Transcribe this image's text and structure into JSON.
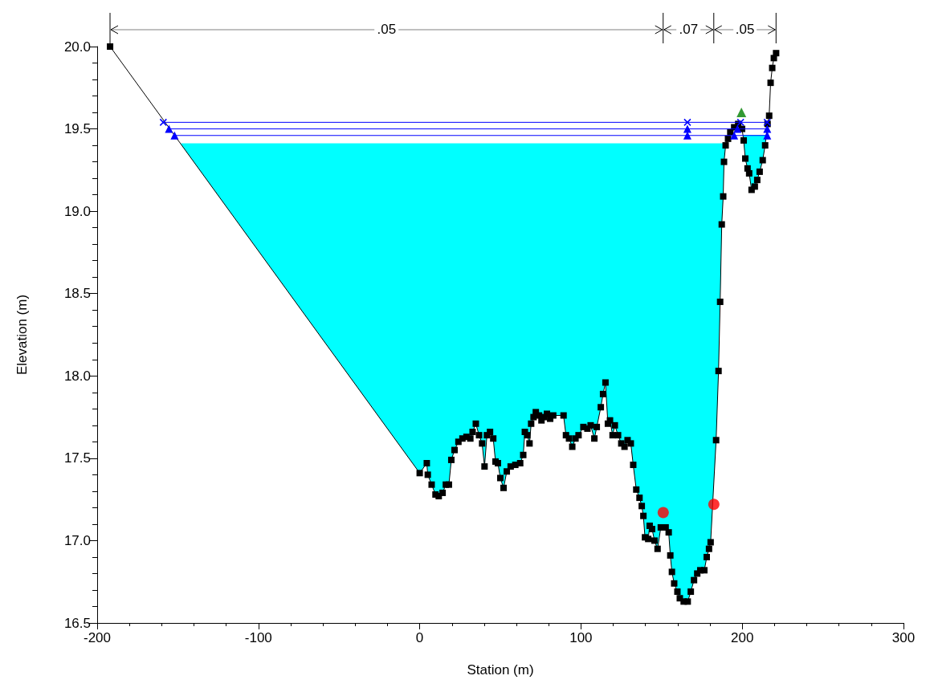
{
  "chart_data": {
    "type": "area",
    "xlabel": "Station (m)",
    "ylabel": "Elevation (m)",
    "xlim": [
      -200,
      300
    ],
    "xticks": [
      -200,
      -100,
      0,
      100,
      200,
      300
    ],
    "ylim": [
      16.5,
      20.0
    ],
    "yticks": [
      16.5,
      {
        "value": 17,
        "label": "17.0"
      },
      17.5,
      {
        "value": 18,
        "label": "18.0"
      },
      18.5,
      {
        "value": 19,
        "label": "19.0"
      },
      19.5,
      {
        "value": 20,
        "label": "20.0"
      }
    ],
    "grid": false,
    "annotations": [
      ".05",
      ".07",
      ".05"
    ],
    "series": [
      {
        "color": "#000000",
        "marker": "square",
        "x": [
          -192,
          0,
          4.4,
          5,
          7.4,
          9.8,
          11.8,
          14.2,
          16.2,
          18.1,
          19.6,
          21.6,
          24,
          26.5,
          29,
          31.4,
          32.8,
          34.8,
          36.8,
          38.7,
          40.2,
          41.7,
          43.6,
          45.6,
          47,
          48.5,
          50,
          52,
          54,
          56.4,
          59.3,
          62.3,
          64.2,
          65.2,
          66.7,
          68.1,
          69.1,
          70.6,
          72,
          74,
          75.5,
          77,
          78.9,
          80.9,
          82.8,
          89.2,
          90.7,
          92.6,
          94.6,
          96.6,
          98.5,
          101.5,
          104,
          106,
          108.3,
          109.8,
          112.3,
          113.7,
          115.2,
          116.7,
          118,
          119.6,
          121,
          123,
          125,
          127,
          128.9,
          130.9,
          132.4,
          134.3,
          136.3,
          137.7,
          138.7,
          139.7,
          141.7,
          142.6,
          144.1,
          145.6,
          147.5,
          149.5,
          152.5,
          154.4,
          155.4,
          156.4,
          157.8,
          159.8,
          161.3,
          163.7,
          166.2,
          168.1,
          170.1,
          172.1,
          174,
          176.5,
          178,
          179.4,
          180.4,
          183.8,
          185.3,
          186.3,
          187.3,
          188.2,
          188.7,
          189.7,
          191.2,
          192.6,
          195,
          197.5,
          199.9,
          200.9,
          201.9,
          203.3,
          204.3,
          205.8,
          207.8,
          209.3,
          210.8,
          212.7,
          214.2,
          215.7,
          216.7,
          217.6,
          218.6,
          219.6,
          221
        ],
        "values": [
          20.0,
          17.41,
          17.47,
          17.4,
          17.34,
          17.28,
          17.27,
          17.29,
          17.34,
          17.34,
          17.49,
          17.55,
          17.6,
          17.62,
          17.63,
          17.62,
          17.66,
          17.71,
          17.64,
          17.59,
          17.45,
          17.64,
          17.66,
          17.62,
          17.48,
          17.47,
          17.38,
          17.32,
          17.42,
          17.45,
          17.46,
          17.47,
          17.52,
          17.66,
          17.64,
          17.59,
          17.71,
          17.75,
          17.78,
          17.76,
          17.73,
          17.75,
          17.77,
          17.74,
          17.76,
          17.76,
          17.64,
          17.62,
          17.57,
          17.62,
          17.64,
          17.69,
          17.68,
          17.7,
          17.62,
          17.69,
          17.81,
          17.89,
          17.96,
          17.71,
          17.73,
          17.64,
          17.7,
          17.64,
          17.59,
          17.57,
          17.61,
          17.59,
          17.46,
          17.31,
          17.26,
          17.21,
          17.15,
          17.02,
          17.01,
          17.09,
          17.07,
          17.0,
          16.95,
          17.08,
          17.08,
          17.05,
          16.91,
          16.81,
          16.74,
          16.69,
          16.65,
          16.63,
          16.63,
          16.69,
          16.76,
          16.8,
          16.82,
          16.82,
          16.9,
          16.95,
          16.99,
          17.61,
          18.03,
          18.45,
          18.92,
          19.09,
          19.3,
          19.4,
          19.44,
          19.48,
          19.51,
          19.53,
          19.5,
          19.43,
          19.32,
          19.26,
          19.23,
          19.13,
          19.15,
          19.19,
          19.24,
          19.31,
          19.4,
          19.53,
          19.58,
          19.78,
          19.87,
          19.93,
          19.96
        ]
      },
      {
        "type": "area",
        "color": "#00ffff",
        "x": [
          -148,
          189.6
        ],
        "values": [
          19.41,
          19.41
        ]
      },
      {
        "type": "area",
        "color": "#00ffff",
        "x": [
          200.6,
          214.5
        ],
        "values": [
          19.46,
          19.46
        ]
      },
      {
        "type": "line",
        "color": "#0000ff",
        "marker": "cross",
        "x": [
          -159,
          166,
          199,
          215.5
        ],
        "values": [
          19.54,
          19.54,
          19.54,
          19.54
        ]
      },
      {
        "type": "line",
        "color": "#0000ff",
        "marker": "triangle",
        "x": [
          -155.5,
          166,
          197,
          215.5
        ],
        "values": [
          19.5,
          19.5,
          19.5,
          19.5
        ]
      },
      {
        "type": "line",
        "color": "#0000ff",
        "marker": "triangle",
        "x": [
          -152,
          166,
          195,
          215.5
        ],
        "values": [
          19.46,
          19.46,
          19.46,
          19.46
        ]
      },
      {
        "type": "scatter",
        "color": "#ff0000",
        "marker": "circle",
        "x": [
          151,
          182.4
        ],
        "values": [
          17.17,
          17.22
        ]
      },
      {
        "type": "scatter",
        "color": "#008000",
        "marker": "triangle",
        "x": [
          199.5
        ],
        "values": [
          19.6
        ]
      }
    ]
  }
}
